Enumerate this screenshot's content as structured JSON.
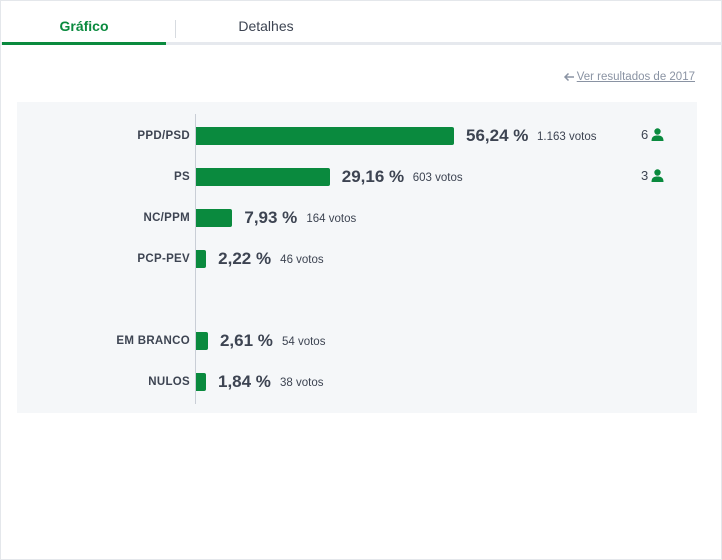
{
  "tabs": [
    {
      "label": "Gráfico",
      "active": true
    },
    {
      "label": "Detalhes",
      "active": false
    }
  ],
  "previous_results_link": "Ver resultados de 2017",
  "accent_color": "#0a8a3e",
  "chart_data": {
    "type": "bar",
    "orientation": "horizontal",
    "categories": [
      "PPD/PSD",
      "PS",
      "NC/PPM",
      "PCP-PEV",
      "EM BRANCO",
      "NULOS"
    ],
    "values": [
      56.24,
      29.16,
      7.93,
      2.22,
      2.61,
      1.84
    ],
    "unit": "%",
    "rows": [
      {
        "label": "PPD/PSD",
        "percent": 56.24,
        "pct_text": "56,24 %",
        "votes_text": "1.163 votos",
        "seats": "6"
      },
      {
        "label": "PS",
        "percent": 29.16,
        "pct_text": "29,16 %",
        "votes_text": "603 votos",
        "seats": "3"
      },
      {
        "label": "NC/PPM",
        "percent": 7.93,
        "pct_text": "7,93 %",
        "votes_text": "164 votos",
        "seats": ""
      },
      {
        "label": "PCP-PEV",
        "percent": 2.22,
        "pct_text": "2,22 %",
        "votes_text": "46 votos",
        "seats": ""
      },
      {
        "label": "EM BRANCO",
        "percent": 2.61,
        "pct_text": "2,61 %",
        "votes_text": "54 votos",
        "seats": ""
      },
      {
        "label": "NULOS",
        "percent": 1.84,
        "pct_text": "1,84 %",
        "votes_text": "38 votos",
        "seats": ""
      }
    ]
  }
}
